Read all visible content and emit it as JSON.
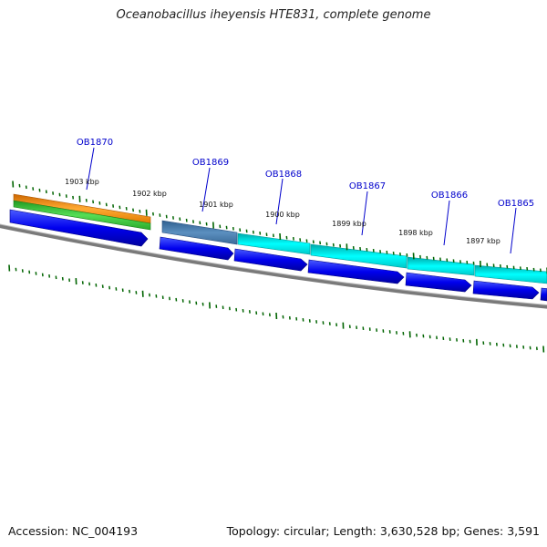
{
  "title": "Oceanobacillus iheyensis HTE831, complete genome",
  "footer": {
    "accession": "Accession: NC_004193",
    "summary": "Topology: circular; Length: 3,630,528 bp; Genes: 3,591"
  },
  "genes": [
    "OB1870",
    "OB1869",
    "OB1868",
    "OB1867",
    "OB1866",
    "OB1865"
  ],
  "kbp_labels": [
    "1903 kbp",
    "1902 kbp",
    "1901 kbp",
    "1900 kbp",
    "1899 kbp",
    "1898 kbp",
    "1897 kbp"
  ],
  "colors": {
    "backbone": "#808080",
    "gene_label": "#0000cc",
    "tick": "#006400",
    "cds": "#0000ee",
    "gene_cyan": "#00e5e5",
    "gene_steel": "#4a80b0",
    "gene_orange": "#ff9900",
    "gene_green": "#33cc33"
  }
}
